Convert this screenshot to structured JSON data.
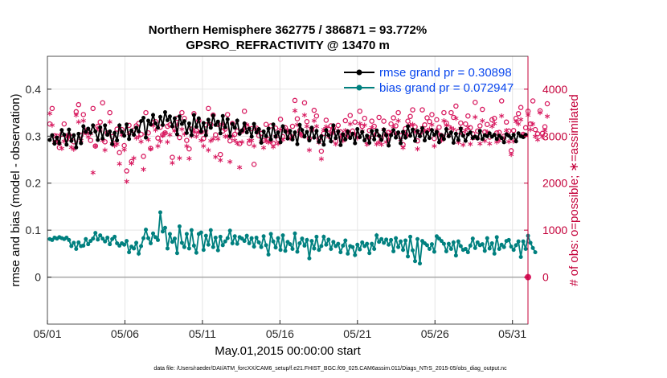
{
  "chart_data": {
    "type": "line",
    "title": [
      "Northern Hemisphere 362775 / 386871 = 93.772%",
      "GPSRO_REFRACTIVITY @ 13470 m"
    ],
    "xlabel": "May.01,2015 00:00:00 start",
    "ylabel_left": "rmse and bias (model - observation)",
    "ylabel_right": "# of obs: o=possible; ∗=assimilated",
    "x_ticks": [
      "05/01",
      "05/06",
      "05/11",
      "05/16",
      "05/21",
      "05/26",
      "05/31"
    ],
    "x_tick_days": [
      0,
      5,
      10,
      15,
      20,
      25,
      30
    ],
    "xlim_days": [
      0,
      31
    ],
    "y_left_ticks": [
      "0",
      "0.1",
      "0.2",
      "0.3",
      "0.4"
    ],
    "y_left_tick_values": [
      0,
      0.1,
      0.2,
      0.3,
      0.4
    ],
    "ylim_left": [
      -0.1,
      0.47
    ],
    "y_right_ticks": [
      "0",
      "1000",
      "2000",
      "3000",
      "4000"
    ],
    "y_right_tick_values": [
      0,
      1000,
      2000,
      3000,
      4000
    ],
    "ylim_right": [
      -1000,
      4700
    ],
    "grid": true,
    "legend_position": "top-right",
    "colors": {
      "rmse": "#000000",
      "bias": "#00807f",
      "obs": "#d81b60",
      "axis_right": "#c4003a",
      "legend_text": "#0a47ee",
      "zero_line": "#a6a6a6",
      "grid": "#e5e5e5"
    },
    "series": [
      {
        "name": "rmse grand pr = 0.30898",
        "values": [
          0.292,
          0.302,
          0.284,
          0.297,
          0.285,
          0.313,
          0.303,
          0.282,
          0.314,
          0.29,
          0.302,
          0.276,
          0.305,
          0.285,
          0.321,
          0.309,
          0.316,
          0.307,
          0.323,
          0.31,
          0.292,
          0.319,
          0.295,
          0.323,
          0.303,
          0.31,
          0.283,
          0.307,
          0.291,
          0.323,
          0.309,
          0.301,
          0.325,
          0.294,
          0.312,
          0.303,
          0.318,
          0.31,
          0.332,
          0.339,
          0.297,
          0.333,
          0.325,
          0.345,
          0.327,
          0.318,
          0.341,
          0.324,
          0.351,
          0.334,
          0.342,
          0.321,
          0.338,
          0.304,
          0.342,
          0.326,
          0.332,
          0.307,
          0.327,
          0.302,
          0.345,
          0.32,
          0.338,
          0.31,
          0.328,
          0.302,
          0.335,
          0.318,
          0.344,
          0.324,
          0.331,
          0.306,
          0.343,
          0.319,
          0.336,
          0.3,
          0.326,
          0.318,
          0.333,
          0.305,
          0.312,
          0.327,
          0.308,
          0.316,
          0.299,
          0.326,
          0.308,
          0.315,
          0.286,
          0.31,
          0.3,
          0.316,
          0.293,
          0.325,
          0.299,
          0.308,
          0.287,
          0.321,
          0.31,
          0.295,
          0.311,
          0.293,
          0.308,
          0.283,
          0.324,
          0.313,
          0.299,
          0.309,
          0.291,
          0.318,
          0.297,
          0.311,
          0.288,
          0.3,
          0.282,
          0.313,
          0.302,
          0.289,
          0.323,
          0.296,
          0.31,
          0.281,
          0.304,
          0.293,
          0.31,
          0.296,
          0.305,
          0.285,
          0.315,
          0.298,
          0.309,
          0.291,
          0.301,
          0.286,
          0.311,
          0.293,
          0.312,
          0.301,
          0.292,
          0.314,
          0.302,
          0.28,
          0.302,
          0.313,
          0.297,
          0.308,
          0.285,
          0.309,
          0.297,
          0.321,
          0.301,
          0.314,
          0.29,
          0.311,
          0.3,
          0.317,
          0.291,
          0.308,
          0.296,
          0.313,
          0.303,
          0.309,
          0.287,
          0.302,
          0.294,
          0.315,
          0.3,
          0.308,
          0.286,
          0.305,
          0.292,
          0.316,
          0.301,
          0.29,
          0.304,
          0.308,
          0.296,
          0.299,
          0.295,
          0.311,
          0.294,
          0.302,
          0.3,
          0.306,
          0.299,
          0.303,
          0.294,
          0.301,
          0.296,
          0.287,
          0.304,
          0.301,
          0.296,
          0.303,
          0.289,
          0.306,
          0.3,
          0.298,
          0.303
        ],
        "color": "#000000"
      },
      {
        "name": "bias grand pr = 0.072947",
        "values": [
          0.081,
          0.079,
          0.084,
          0.082,
          0.085,
          0.083,
          0.081,
          0.084,
          0.079,
          0.066,
          0.073,
          0.06,
          0.074,
          0.066,
          0.067,
          0.081,
          0.07,
          0.077,
          0.082,
          0.094,
          0.08,
          0.089,
          0.082,
          0.076,
          0.084,
          0.07,
          0.081,
          0.086,
          0.072,
          0.067,
          0.072,
          0.069,
          0.077,
          0.053,
          0.065,
          0.061,
          0.073,
          0.05,
          0.066,
          0.083,
          0.101,
          0.083,
          0.072,
          0.093,
          0.085,
          0.079,
          0.138,
          0.097,
          0.105,
          0.061,
          0.092,
          0.075,
          0.082,
          0.051,
          0.108,
          0.073,
          0.064,
          0.092,
          0.061,
          0.1,
          0.067,
          0.052,
          0.092,
          0.095,
          0.058,
          0.088,
          0.069,
          0.1,
          0.064,
          0.084,
          0.057,
          0.086,
          0.068,
          0.076,
          0.083,
          0.099,
          0.072,
          0.087,
          0.071,
          0.085,
          0.082,
          0.077,
          0.088,
          0.072,
          0.083,
          0.065,
          0.084,
          0.074,
          0.064,
          0.087,
          0.068,
          0.048,
          0.092,
          0.076,
          0.063,
          0.083,
          0.058,
          0.089,
          0.056,
          0.075,
          0.07,
          0.06,
          0.093,
          0.054,
          0.072,
          0.082,
          0.067,
          0.079,
          0.04,
          0.077,
          0.061,
          0.086,
          0.058,
          0.066,
          0.086,
          0.069,
          0.08,
          0.06,
          0.075,
          0.066,
          0.071,
          0.053,
          0.067,
          0.078,
          0.05,
          0.066,
          0.064,
          0.047,
          0.069,
          0.059,
          0.074,
          0.066,
          0.071,
          0.051,
          0.071,
          0.06,
          0.089,
          0.075,
          0.081,
          0.073,
          0.08,
          0.069,
          0.079,
          0.055,
          0.083,
          0.064,
          0.076,
          0.058,
          0.078,
          0.044,
          0.086,
          0.057,
          0.034,
          0.081,
          0.029,
          0.077,
          0.072,
          0.068,
          0.06,
          0.07,
          0.054,
          0.087,
          0.082,
          0.077,
          0.071,
          0.055,
          0.071,
          0.06,
          0.074,
          0.046,
          0.076,
          0.066,
          0.058,
          0.06,
          0.053,
          0.067,
          0.082,
          0.062,
          0.074,
          0.068,
          0.07,
          0.056,
          0.083,
          0.061,
          0.072,
          0.05,
          0.085,
          0.06,
          0.069,
          0.064,
          0.077,
          0.079,
          0.065,
          0.058,
          0.068,
          0.076,
          0.043,
          0.076,
          0.06,
          0.088,
          0.073,
          0.062,
          0.053
        ],
        "color": "#00807f"
      },
      {
        "name": "possible",
        "marker": "o",
        "values": [
          3260,
          3590,
          3010,
          3000,
          2760,
          3040,
          3260,
          2930,
          3020,
          2980,
          2880,
          3520,
          3670,
          3020,
          3460,
          3080,
          3100,
          2910,
          3590,
          2790,
          3210,
          3300,
          3710,
          2880,
          3070,
          3500,
          2990,
          2850,
          3150,
          2650,
          3140,
          2800,
          2260,
          3230,
          2460,
          3130,
          3220,
          3270,
          3040,
          2570,
          3500,
          3070,
          2740,
          3290,
          3310,
          2960,
          3190,
          3030,
          3070,
          3210,
          3240,
          2550,
          3150,
          3380,
          2970,
          3500,
          3380,
          2910,
          2730,
          3150,
          3480,
          3120,
          3330,
          3090,
          2950,
          3240,
          3590,
          3250,
          3450,
          3030,
          3250,
          2610,
          3110,
          3150,
          3460,
          2900,
          3270,
          3040,
          3110,
          2840,
          3110,
          3530,
          3210,
          2850,
          3160,
          2400,
          3170,
          3010,
          3060,
          2910,
          3250,
          2930,
          3220,
          2850,
          3170,
          2930,
          3360,
          2990,
          3180,
          3110,
          3000,
          3210,
          3760,
          3370,
          3120,
          3020,
          3710,
          3310,
          2950,
          3150,
          3550,
          3430,
          2940,
          2680,
          3060,
          3340,
          3150,
          3220,
          3170,
          2890,
          3230,
          3090,
          3030,
          3330,
          3090,
          3440,
          3110,
          3300,
          3030,
          3530,
          3210,
          3380,
          2900,
          3120,
          3320,
          3210,
          3050,
          3400,
          2960,
          3320,
          3030,
          3080,
          3260,
          3390,
          3220,
          3500,
          3010,
          2820,
          3160,
          3320,
          3420,
          3560,
          3200,
          2900,
          3070,
          3560,
          3240,
          3390,
          3310,
          3460,
          2950,
          3350,
          3190,
          3010,
          3500,
          3280,
          3190,
          3500,
          3400,
          3640,
          3100,
          3280,
          3050,
          3260,
          3430,
          3180,
          3050,
          3720,
          3110,
          3220,
          3570,
          3090,
          3250,
          2980,
          3350,
          3380,
          3070,
          3080,
          3750,
          3000,
          3300,
          3110,
          2690,
          3120,
          3380,
          3480,
          3610,
          3040,
          3180,
          3530,
          3260,
          3750,
          3140,
          3050,
          3540,
          3060,
          3200,
          3690
        ]
      },
      {
        "name": "assimilated",
        "marker": "*",
        "values": [
          3450,
          3200,
          2830,
          2860,
          2820,
          2710,
          2860,
          2980,
          2980,
          2730,
          2690,
          3420,
          3270,
          2880,
          3300,
          3100,
          2950,
          3020,
          2190,
          2760,
          3130,
          3100,
          2880,
          2670,
          3010,
          3270,
          2810,
          2770,
          2800,
          2380,
          3000,
          2680,
          2000,
          3020,
          2390,
          2500,
          2930,
          2950,
          2850,
          2260,
          3010,
          2890,
          2700,
          3190,
          3100,
          2760,
          2860,
          2980,
          3040,
          2840,
          3000,
          2400,
          3080,
          3220,
          2500,
          3120,
          3010,
          2760,
          2490,
          2970,
          3060,
          2960,
          3050,
          2880,
          2760,
          3060,
          2670,
          2870,
          2910,
          2530,
          2910,
          2460,
          3220,
          2960,
          2960,
          2420,
          2970,
          2880,
          2820,
          2300,
          2840,
          3120,
          3210,
          2880,
          2880,
          2760,
          3110,
          3080,
          2850,
          2720,
          2870,
          2830,
          2840,
          2740,
          2960,
          2810,
          3110,
          2890,
          3110,
          3070,
          2920,
          2960,
          3510,
          3210,
          3020,
          2990,
          3420,
          3180,
          2670,
          3100,
          3300,
          3180,
          2830,
          2480,
          3110,
          3170,
          2950,
          3040,
          3040,
          2800,
          3080,
          2950,
          2870,
          3090,
          2960,
          3230,
          3010,
          3010,
          2930,
          3240,
          3070,
          3200,
          2790,
          2940,
          3150,
          2990,
          2800,
          2840,
          2790,
          3110,
          2840,
          2910,
          3050,
          3170,
          3020,
          3300,
          2890,
          2720,
          3010,
          2990,
          3200,
          3220,
          3060,
          2700,
          2990,
          3150,
          3080,
          3090,
          3120,
          3210,
          2760,
          3100,
          3010,
          2880,
          3300,
          3200,
          2980,
          3140,
          3120,
          3350,
          2830,
          3130,
          2780,
          3090,
          3150,
          2800,
          2920,
          3370,
          2930,
          2810,
          3300,
          2870,
          3060,
          2810,
          3180,
          3240,
          2840,
          2880,
          3400,
          2930,
          3090,
          2850,
          2580,
          2860,
          3280,
          3230,
          3320,
          3000,
          2980,
          3420,
          3110,
          3230,
          2960,
          2890,
          3470,
          2950,
          3090,
          3390
        ]
      }
    ],
    "zero_marker_value": 0
  },
  "footnote": "data file: /Users/raeder/DAI/ATM_forcXX/CAM6_setup/f.e21.FHIST_BGC.f09_025.CAM6assim.011/Diags_NTrS_2015-05/obs_diag_output.nc"
}
